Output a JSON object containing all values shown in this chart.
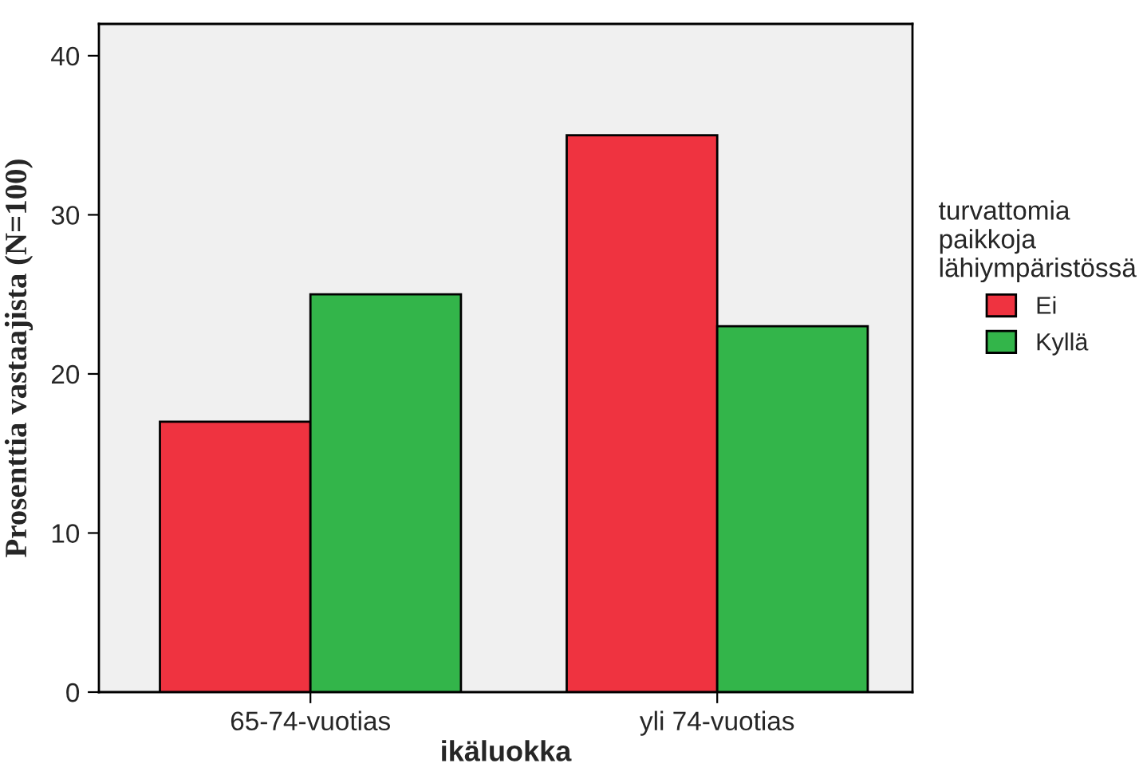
{
  "chart_data": {
    "type": "bar",
    "xlabel": "ikäluokka",
    "ylabel": "Prosenttia vastaajista (N=100)",
    "legend_title": "turvattomia\npaikkoja\nlähiympäristössä",
    "categories": [
      "65-74-vuotias",
      "yli 74-vuotias"
    ],
    "series": [
      {
        "name": "Ei",
        "color": "#ef3340",
        "values": [
          17,
          35
        ]
      },
      {
        "name": "Kyllä",
        "color": "#33b54a",
        "values": [
          25,
          23
        ]
      }
    ],
    "ylim": [
      0,
      42
    ],
    "yticks": [
      0,
      10,
      20,
      30,
      40
    ],
    "grid": false,
    "legend": "right"
  }
}
